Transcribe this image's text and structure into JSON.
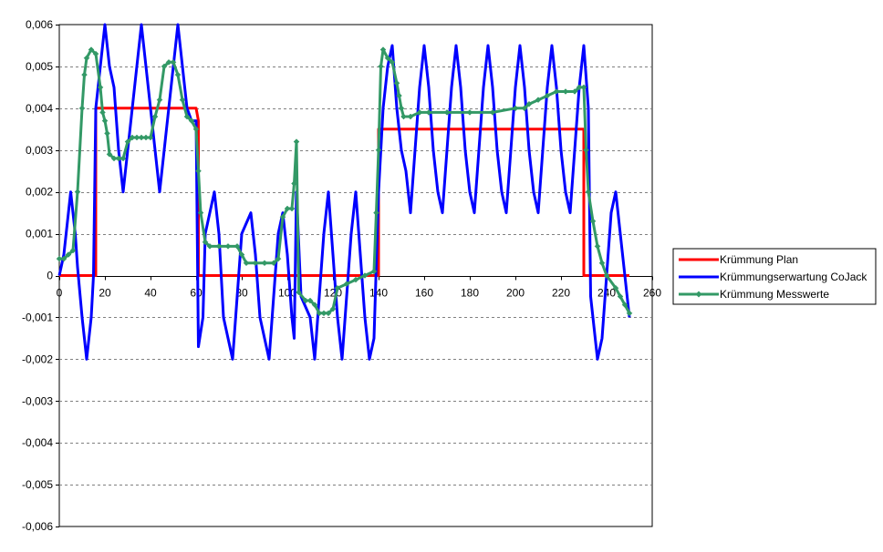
{
  "chart_data": {
    "type": "line",
    "title": "",
    "xlabel": "",
    "ylabel": "",
    "xlim": [
      0,
      260
    ],
    "ylim": [
      -0.006,
      0.006
    ],
    "xticks": [
      0,
      20,
      40,
      60,
      80,
      100,
      120,
      140,
      160,
      180,
      200,
      220,
      240,
      260
    ],
    "xtick_labels": [
      "0",
      "20",
      "40",
      "60",
      "80",
      "100",
      "120",
      "140",
      "160",
      "180",
      "200",
      "220",
      "240",
      "260"
    ],
    "yticks": [
      -0.006,
      -0.005,
      -0.004,
      -0.003,
      -0.002,
      -0.001,
      0,
      0.001,
      0.002,
      0.003,
      0.004,
      0.005,
      0.006
    ],
    "ytick_labels": [
      "-0,006",
      "-0,005",
      "-0,004",
      "-0,003",
      "-0,002",
      "-0,001",
      "0",
      "0,001",
      "0,002",
      "0,003",
      "0,004",
      "0,005",
      "0,006"
    ],
    "grid": "horizontal-dashed",
    "legend_position": "right",
    "series": [
      {
        "name": "Krümmung Plan",
        "color": "#ff0000",
        "marker": "none",
        "points": [
          [
            0,
            0
          ],
          [
            16,
            0
          ],
          [
            16,
            0.004
          ],
          [
            60,
            0.004
          ],
          [
            61,
            0.0037
          ],
          [
            61,
            0
          ],
          [
            140,
            0
          ],
          [
            140,
            0.0035
          ],
          [
            230,
            0.0035
          ],
          [
            230,
            0
          ],
          [
            250,
            0
          ]
        ]
      },
      {
        "name": "Krümmungserwartung CoJack",
        "color": "#0000ff",
        "marker": "none",
        "points": [
          [
            0,
            0
          ],
          [
            2,
            0.0005
          ],
          [
            4,
            0.0015
          ],
          [
            5,
            0.002
          ],
          [
            7,
            0.001
          ],
          [
            8,
            0.0002
          ],
          [
            10,
            -0.001
          ],
          [
            12,
            -0.002
          ],
          [
            14,
            -0.001
          ],
          [
            15,
            0
          ],
          [
            16,
            0.004
          ],
          [
            18,
            0.005
          ],
          [
            20,
            0.006
          ],
          [
            22,
            0.005
          ],
          [
            24,
            0.0045
          ],
          [
            26,
            0.003
          ],
          [
            28,
            0.002
          ],
          [
            30,
            0.003
          ],
          [
            32,
            0.004
          ],
          [
            34,
            0.005
          ],
          [
            36,
            0.006
          ],
          [
            38,
            0.005
          ],
          [
            40,
            0.004
          ],
          [
            42,
            0.003
          ],
          [
            44,
            0.002
          ],
          [
            46,
            0.003
          ],
          [
            48,
            0.004
          ],
          [
            50,
            0.005
          ],
          [
            52,
            0.006
          ],
          [
            54,
            0.005
          ],
          [
            56,
            0.004
          ],
          [
            58,
            0.0037
          ],
          [
            60,
            0.0037
          ],
          [
            61,
            -0.0017
          ],
          [
            63,
            -0.001
          ],
          [
            64,
            0.001
          ],
          [
            68,
            0.002
          ],
          [
            70,
            0.001
          ],
          [
            72,
            -0.001
          ],
          [
            76,
            -0.002
          ],
          [
            78,
            -0.0005
          ],
          [
            80,
            0.001
          ],
          [
            84,
            0.0015
          ],
          [
            86,
            0.0005
          ],
          [
            88,
            -0.001
          ],
          [
            92,
            -0.002
          ],
          [
            94,
            -0.0005
          ],
          [
            96,
            0.001
          ],
          [
            98,
            0.0015
          ],
          [
            100,
            0.0005
          ],
          [
            102,
            -0.001
          ],
          [
            103,
            -0.0015
          ],
          [
            104,
            0.002
          ],
          [
            106,
            -0.0005
          ],
          [
            110,
            -0.001
          ],
          [
            112,
            -0.002
          ],
          [
            114,
            -0.0005
          ],
          [
            116,
            0.001
          ],
          [
            118,
            0.002
          ],
          [
            120,
            0.0005
          ],
          [
            122,
            -0.001
          ],
          [
            124,
            -0.002
          ],
          [
            126,
            -0.0005
          ],
          [
            128,
            0.001
          ],
          [
            130,
            0.002
          ],
          [
            132,
            0.0005
          ],
          [
            134,
            -0.001
          ],
          [
            136,
            -0.002
          ],
          [
            138,
            -0.0015
          ],
          [
            140,
            0.002
          ],
          [
            142,
            0.004
          ],
          [
            144,
            0.005
          ],
          [
            146,
            0.0055
          ],
          [
            148,
            0.004
          ],
          [
            150,
            0.003
          ],
          [
            152,
            0.0025
          ],
          [
            154,
            0.0015
          ],
          [
            156,
            0.003
          ],
          [
            158,
            0.0045
          ],
          [
            160,
            0.0055
          ],
          [
            162,
            0.0045
          ],
          [
            164,
            0.003
          ],
          [
            166,
            0.002
          ],
          [
            168,
            0.0015
          ],
          [
            170,
            0.003
          ],
          [
            172,
            0.0045
          ],
          [
            174,
            0.0055
          ],
          [
            176,
            0.0045
          ],
          [
            178,
            0.003
          ],
          [
            180,
            0.002
          ],
          [
            182,
            0.0015
          ],
          [
            184,
            0.003
          ],
          [
            186,
            0.0045
          ],
          [
            188,
            0.0055
          ],
          [
            190,
            0.0045
          ],
          [
            192,
            0.003
          ],
          [
            194,
            0.002
          ],
          [
            196,
            0.0015
          ],
          [
            198,
            0.003
          ],
          [
            200,
            0.0045
          ],
          [
            202,
            0.0055
          ],
          [
            204,
            0.0045
          ],
          [
            206,
            0.003
          ],
          [
            208,
            0.002
          ],
          [
            210,
            0.0015
          ],
          [
            212,
            0.003
          ],
          [
            214,
            0.0045
          ],
          [
            216,
            0.0055
          ],
          [
            218,
            0.0045
          ],
          [
            220,
            0.003
          ],
          [
            222,
            0.002
          ],
          [
            224,
            0.0015
          ],
          [
            226,
            0.003
          ],
          [
            228,
            0.0045
          ],
          [
            230,
            0.0055
          ],
          [
            232,
            0.004
          ],
          [
            233,
            -0.0005
          ],
          [
            234,
            -0.001
          ],
          [
            236,
            -0.002
          ],
          [
            238,
            -0.0015
          ],
          [
            240,
            0
          ],
          [
            242,
            0.0015
          ],
          [
            244,
            0.002
          ],
          [
            246,
            0.001
          ],
          [
            248,
            0
          ],
          [
            250,
            -0.001
          ]
        ]
      },
      {
        "name": "Krümmung Messwerte",
        "color": "#339966",
        "marker": "diamond",
        "points": [
          [
            0,
            0.0004
          ],
          [
            2,
            0.0004
          ],
          [
            4,
            0.0005
          ],
          [
            6,
            0.0006
          ],
          [
            8,
            0.002
          ],
          [
            10,
            0.004
          ],
          [
            11,
            0.0048
          ],
          [
            12,
            0.0052
          ],
          [
            14,
            0.0054
          ],
          [
            16,
            0.0053
          ],
          [
            18,
            0.0045
          ],
          [
            19,
            0.0039
          ],
          [
            20,
            0.0037
          ],
          [
            21,
            0.0034
          ],
          [
            22,
            0.0029
          ],
          [
            24,
            0.0028
          ],
          [
            26,
            0.0028
          ],
          [
            28,
            0.0028
          ],
          [
            30,
            0.0032
          ],
          [
            32,
            0.0033
          ],
          [
            34,
            0.0033
          ],
          [
            36,
            0.0033
          ],
          [
            38,
            0.0033
          ],
          [
            40,
            0.0033
          ],
          [
            42,
            0.0038
          ],
          [
            44,
            0.0042
          ],
          [
            46,
            0.005
          ],
          [
            48,
            0.0051
          ],
          [
            50,
            0.0051
          ],
          [
            52,
            0.0048
          ],
          [
            54,
            0.0042
          ],
          [
            56,
            0.0038
          ],
          [
            58,
            0.0037
          ],
          [
            60,
            0.0035
          ],
          [
            61,
            0.0025
          ],
          [
            62,
            0.0015
          ],
          [
            64,
            0.0008
          ],
          [
            66,
            0.0007
          ],
          [
            70,
            0.0007
          ],
          [
            74,
            0.0007
          ],
          [
            78,
            0.0007
          ],
          [
            80,
            0.0005
          ],
          [
            82,
            0.0003
          ],
          [
            86,
            0.0003
          ],
          [
            90,
            0.0003
          ],
          [
            94,
            0.0003
          ],
          [
            96,
            0.0004
          ],
          [
            98,
            0.0014
          ],
          [
            100,
            0.0016
          ],
          [
            102,
            0.0016
          ],
          [
            103,
            0.0022
          ],
          [
            104,
            0.0032
          ],
          [
            105,
            -0.0004
          ],
          [
            108,
            -0.0006
          ],
          [
            110,
            -0.0006
          ],
          [
            112,
            -0.0007
          ],
          [
            114,
            -0.0009
          ],
          [
            116,
            -0.0009
          ],
          [
            118,
            -0.0009
          ],
          [
            120,
            -0.0008
          ],
          [
            122,
            -0.0003
          ],
          [
            126,
            -0.0002
          ],
          [
            130,
            -0.0001
          ],
          [
            134,
            0
          ],
          [
            138,
            0.0001
          ],
          [
            139,
            0.0015
          ],
          [
            140,
            0.003
          ],
          [
            141,
            0.005
          ],
          [
            142,
            0.0054
          ],
          [
            144,
            0.0052
          ],
          [
            146,
            0.0051
          ],
          [
            148,
            0.0046
          ],
          [
            149,
            0.0043
          ],
          [
            150,
            0.004
          ],
          [
            151,
            0.0038
          ],
          [
            154,
            0.0038
          ],
          [
            158,
            0.0039
          ],
          [
            162,
            0.0039
          ],
          [
            170,
            0.0039
          ],
          [
            180,
            0.0039
          ],
          [
            190,
            0.0039
          ],
          [
            200,
            0.004
          ],
          [
            204,
            0.004
          ],
          [
            206,
            0.0041
          ],
          [
            210,
            0.0042
          ],
          [
            214,
            0.0043
          ],
          [
            218,
            0.0044
          ],
          [
            222,
            0.0044
          ],
          [
            226,
            0.0044
          ],
          [
            228,
            0.0045
          ],
          [
            230,
            0.0045
          ],
          [
            231,
            0.003
          ],
          [
            232,
            0.002
          ],
          [
            234,
            0.0013
          ],
          [
            236,
            0.0007
          ],
          [
            238,
            0.0003
          ],
          [
            240,
            0
          ],
          [
            244,
            -0.0003
          ],
          [
            246,
            -0.0005
          ],
          [
            248,
            -0.0007
          ],
          [
            250,
            -0.0009
          ]
        ]
      }
    ]
  }
}
